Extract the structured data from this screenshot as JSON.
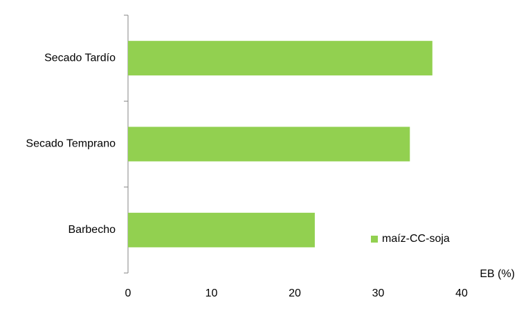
{
  "chart_data": {
    "type": "bar",
    "orientation": "horizontal",
    "categories": [
      "Barbecho",
      "Secado Temprano",
      "Secado Tardío"
    ],
    "series": [
      {
        "name": "maíz-CC-soja",
        "color": "#92d050",
        "values": [
          22.4,
          33.8,
          36.5
        ]
      }
    ],
    "xlabel": "EB (%)",
    "xlim": [
      0,
      40
    ],
    "xticks": [
      0,
      10,
      20,
      30,
      40
    ],
    "grid": false,
    "legend": "lower right"
  }
}
